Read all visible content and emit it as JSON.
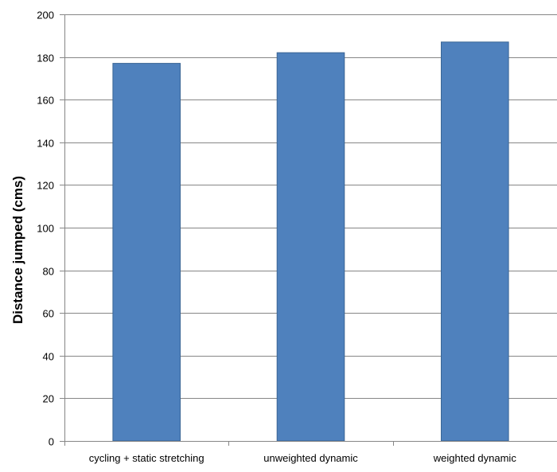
{
  "chart_data": {
    "type": "bar",
    "title": "",
    "xlabel": "",
    "ylabel": "Distance jumped (cms)",
    "categories": [
      "cycling + static stretching",
      "unweighted dynamic",
      "weighted dynamic"
    ],
    "values": [
      177,
      182,
      187
    ],
    "ylim": [
      0,
      200
    ],
    "yticks": [
      0,
      20,
      40,
      60,
      80,
      100,
      120,
      140,
      160,
      180,
      200
    ],
    "grid": true,
    "legend": "none",
    "bar_color": "#4f81bd",
    "bar_border_color": "#3a6595",
    "gridline_color": "#868686"
  }
}
